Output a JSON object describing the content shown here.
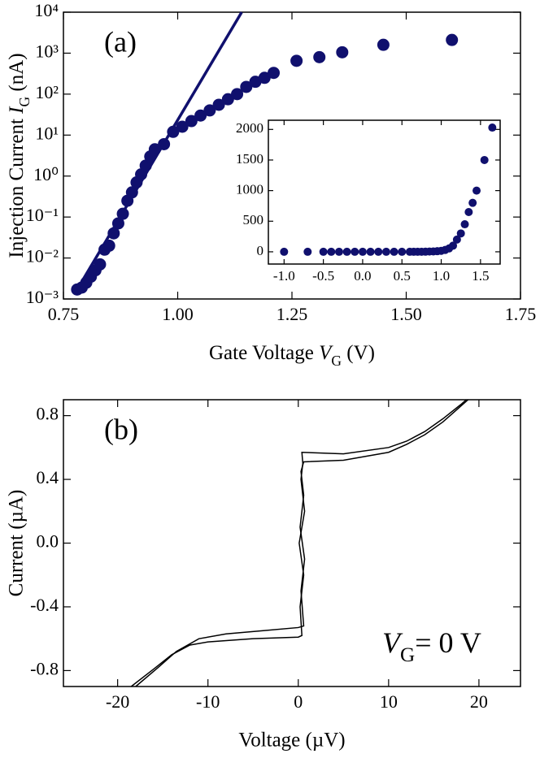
{
  "chart_data": [
    {
      "type": "scatter",
      "log_y": true,
      "x_label": [
        "Gate Voltage ",
        "V",
        "G",
        " (V)"
      ],
      "y_label": [
        "Injection Current ",
        "I",
        "G",
        " (nA)"
      ],
      "annotations": [
        "(a)"
      ],
      "xlim": [
        0.75,
        1.75
      ],
      "xticks": [
        0.75,
        {
          "value": 1.0,
          "label": "1.00"
        },
        1.25,
        {
          "value": 1.5,
          "label": "1.50"
        },
        1.75
      ],
      "ylim": [
        0.001,
        10000
      ],
      "yticks": [
        {
          "value": 0.001,
          "label": "10⁻³"
        },
        {
          "value": 0.01,
          "label": "10⁻²"
        },
        {
          "value": 0.1,
          "label": "10⁻¹"
        },
        {
          "value": 1,
          "label": "10⁰"
        },
        {
          "value": 10,
          "label": "10¹"
        },
        {
          "value": 100,
          "label": "10²"
        },
        {
          "value": 1000,
          "label": "10³"
        },
        {
          "value": 10000,
          "label": "10⁴"
        }
      ],
      "series": [
        {
          "type": "scatter",
          "color": "#10106e",
          "x": [
            0.78,
            0.79,
            0.8,
            0.81,
            0.82,
            0.83,
            0.84,
            0.85,
            0.86,
            0.87,
            0.88,
            0.89,
            0.9,
            0.91,
            0.92,
            0.93,
            0.94,
            0.95,
            0.97,
            0.99,
            1.01,
            1.03,
            1.05,
            1.07,
            1.09,
            1.11,
            1.13,
            1.15,
            1.17,
            1.19,
            1.21,
            1.26,
            1.31,
            1.36,
            1.45,
            1.6
          ],
          "values": [
            0.0017,
            0.0019,
            0.0025,
            0.0035,
            0.005,
            0.007,
            0.016,
            0.02,
            0.04,
            0.07,
            0.12,
            0.25,
            0.4,
            0.7,
            1.1,
            1.8,
            3,
            4.5,
            6,
            12,
            16,
            22,
            30,
            40,
            55,
            75,
            100,
            150,
            200,
            250,
            330,
            650,
            800,
            1050,
            1600,
            2100
          ]
        },
        {
          "type": "line",
          "color": "#10106e",
          "x": [
            0.78,
            1.14
          ],
          "values": [
            0.0017,
            10000
          ]
        }
      ]
    },
    {
      "type": "scatter",
      "xlim": [
        -1.2,
        1.75
      ],
      "xticks": [
        {
          "value": -1.0,
          "label": "-1.0"
        },
        -0.5,
        {
          "value": 0.0,
          "label": "0.0"
        },
        0.5,
        {
          "value": 1.0,
          "label": "1.0"
        },
        1.5
      ],
      "ylim": [
        -200,
        2150
      ],
      "yticks": [
        0,
        500,
        1000,
        1500,
        2000
      ],
      "series": [
        {
          "color": "#10106e",
          "x": [
            -1.0,
            -0.7,
            -0.5,
            -0.4,
            -0.3,
            -0.2,
            -0.1,
            0.0,
            0.1,
            0.2,
            0.3,
            0.4,
            0.5,
            0.6,
            0.65,
            0.7,
            0.75,
            0.8,
            0.85,
            0.9,
            0.95,
            1.0,
            1.05,
            1.1,
            1.15,
            1.2,
            1.25,
            1.3,
            1.35,
            1.4,
            1.45,
            1.55,
            1.65
          ],
          "values": [
            0,
            0,
            0,
            0,
            0,
            0,
            0,
            0,
            0,
            0,
            0,
            0,
            0,
            0,
            0,
            0,
            1,
            2,
            4,
            6,
            10,
            16,
            30,
            55,
            100,
            200,
            300,
            450,
            650,
            800,
            1000,
            1500,
            2030
          ]
        }
      ]
    },
    {
      "type": "line",
      "x_label": "Voltage (µV)",
      "y_label": "Current (µA)",
      "annotations": [
        "(b)",
        [
          "V",
          "G",
          "= 0 V"
        ]
      ],
      "xlim": [
        -26,
        24.6
      ],
      "xticks": [
        -20,
        -10,
        0,
        10,
        20
      ],
      "ylim": [
        -0.9,
        0.9
      ],
      "yticks": [
        0.8,
        0.4,
        {
          "value": 0.0,
          "label": "0.0"
        },
        -0.4,
        -0.8
      ],
      "series": [
        {
          "color": "#000000",
          "x": [
            -18.5,
            -16,
            -14,
            -12,
            -10,
            -5,
            0,
            0.4,
            0.2,
            0.6,
            0.1,
            0.7,
            0.3,
            0.5,
            0.4,
            5,
            10,
            12,
            14,
            16,
            18,
            18.6
          ],
          "values": [
            -0.9,
            -0.79,
            -0.7,
            -0.64,
            -0.62,
            -0.6,
            -0.59,
            -0.58,
            -0.4,
            -0.2,
            0,
            0.2,
            0.4,
            0.5,
            0.57,
            0.56,
            0.6,
            0.64,
            0.7,
            0.78,
            0.87,
            0.9
          ]
        },
        {
          "color": "#000000",
          "x": [
            -18,
            -15.5,
            -13.5,
            -11,
            -8,
            -4,
            0,
            0.6,
            0.3,
            0.7,
            0.2,
            0.6,
            0.3,
            0.6,
            5,
            10,
            12,
            14,
            16,
            18,
            18.8
          ],
          "values": [
            -0.9,
            -0.78,
            -0.68,
            -0.6,
            -0.57,
            -0.55,
            -0.53,
            -0.52,
            -0.3,
            -0.1,
            0.1,
            0.3,
            0.45,
            0.51,
            0.52,
            0.57,
            0.62,
            0.68,
            0.76,
            0.86,
            0.9
          ]
        }
      ]
    }
  ]
}
